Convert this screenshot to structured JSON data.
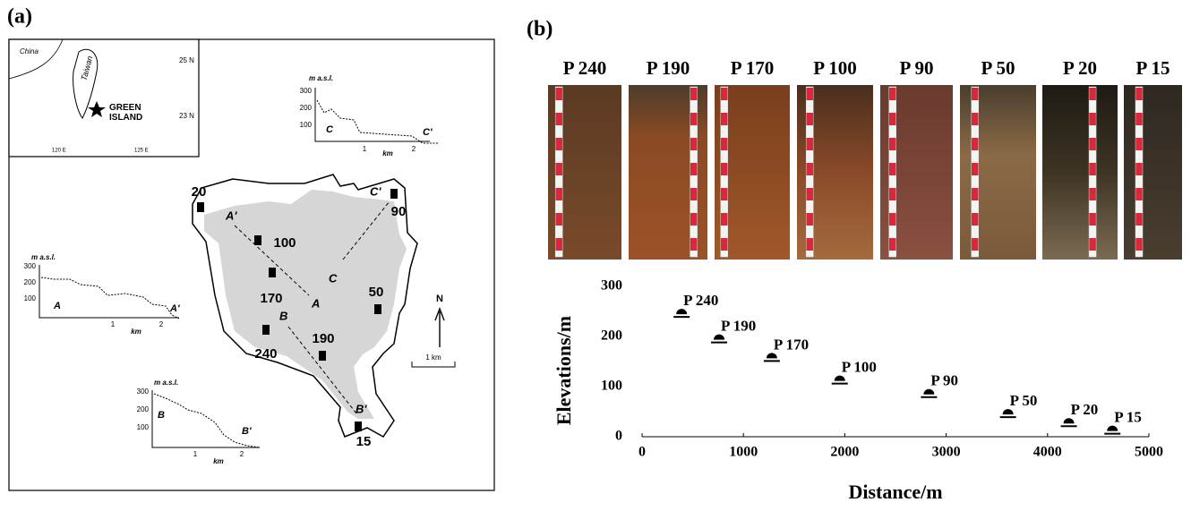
{
  "panel_a": {
    "label": "(a)",
    "inset": {
      "country": "China",
      "island": "Taiwan",
      "site": "GREEN ISLAND",
      "lat_top": "25 N",
      "lat_bottom": "23 N",
      "lon_left": "120 E",
      "lon_right": "125 E"
    },
    "profile_c": {
      "unit": "m a.s.l.",
      "yticks": [
        "300",
        "200",
        "100"
      ],
      "start": "C",
      "end": "C'",
      "xticks": [
        "1",
        "2"
      ],
      "xlabel": "km"
    },
    "profile_a": {
      "unit": "m a.s.l.",
      "yticks": [
        "300",
        "200",
        "100"
      ],
      "start": "A",
      "end": "A'",
      "xticks": [
        "1",
        "2"
      ],
      "xlabel": "km"
    },
    "profile_b": {
      "unit": "m a.s.l.",
      "yticks": [
        "300",
        "200",
        "100"
      ],
      "start": "B",
      "end": "B'",
      "xticks": [
        "1",
        "2"
      ],
      "xlabel": "km"
    },
    "sites": [
      "20",
      "100",
      "170",
      "240",
      "190",
      "15",
      "90",
      "50"
    ],
    "transects": {
      "a_start": "A'",
      "a_end": "A",
      "b_start": "B",
      "b_end": "B'",
      "c_start": "C",
      "c_end": "C'"
    },
    "north": "N",
    "scale": "1 km"
  },
  "panel_b": {
    "label": "(b)",
    "photos": [
      "P 240",
      "P 190",
      "P 170",
      "P 100",
      "P 90",
      "P 50",
      "P 20",
      "P 15"
    ]
  },
  "chart_data": {
    "type": "scatter",
    "x": [
      390,
      760,
      1280,
      1950,
      2830,
      3610,
      4210,
      4640
    ],
    "y": [
      248,
      197,
      160,
      115,
      88,
      48,
      30,
      15
    ],
    "labels": [
      "P 240",
      "P 190",
      "P 170",
      "P 100",
      "P 90",
      "P 50",
      "P 20",
      "P 15"
    ],
    "xlabel": "Distance/m",
    "ylabel": "Elevations/m",
    "xlim": [
      0,
      5000
    ],
    "ylim": [
      0,
      300
    ],
    "xticks": [
      0,
      1000,
      2000,
      3000,
      4000,
      5000
    ],
    "yticks": [
      0,
      100,
      200,
      300
    ],
    "color": "#000000"
  }
}
